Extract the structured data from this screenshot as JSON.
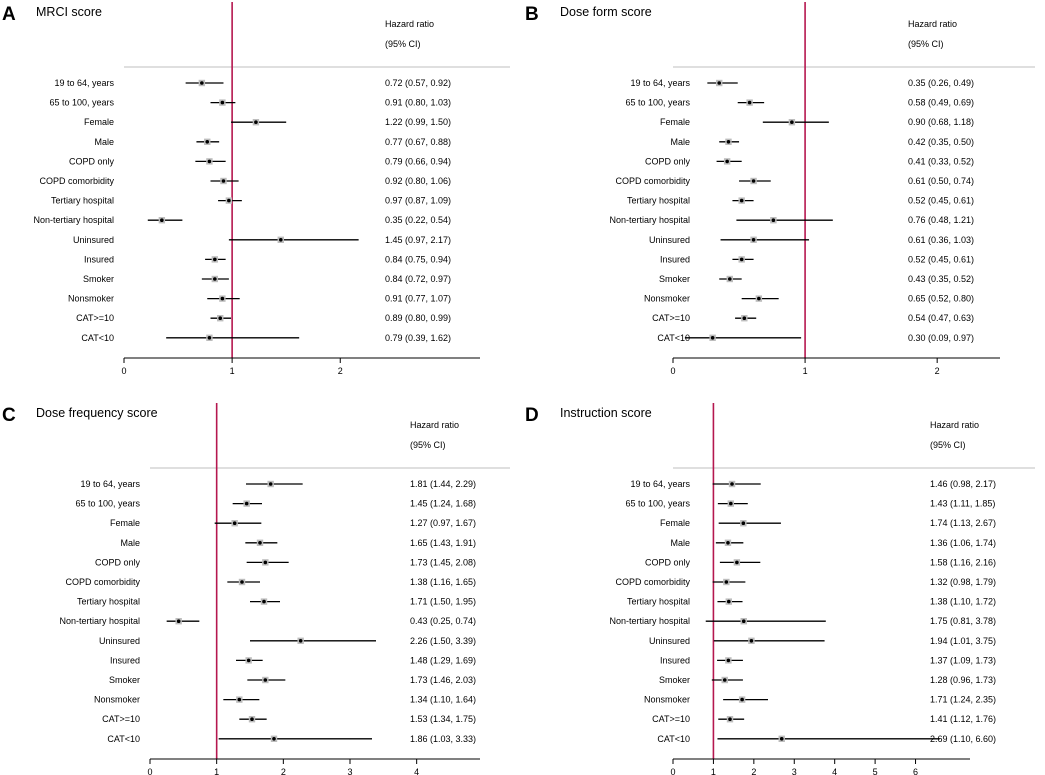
{
  "chart_data": [
    {
      "type": "forest",
      "panel_letter": "A",
      "title": "MRCI score",
      "header_line1": "Hazard ratio",
      "header_line2": "(95% CI)",
      "reference_line": 1,
      "xlim": [
        0,
        3.2
      ],
      "xticks": [
        0,
        1,
        2
      ],
      "rows": [
        {
          "label": "19 to 64, years",
          "hr": 0.72,
          "lo": 0.57,
          "hi": 0.92,
          "text": "0.72 (0.57, 0.92)"
        },
        {
          "label": "65 to 100, years",
          "hr": 0.91,
          "lo": 0.8,
          "hi": 1.03,
          "text": "0.91 (0.80, 1.03)"
        },
        {
          "label": "Female",
          "hr": 1.22,
          "lo": 0.99,
          "hi": 1.5,
          "text": "1.22 (0.99, 1.50)"
        },
        {
          "label": "Male",
          "hr": 0.77,
          "lo": 0.67,
          "hi": 0.88,
          "text": "0.77 (0.67, 0.88)"
        },
        {
          "label": "COPD only",
          "hr": 0.79,
          "lo": 0.66,
          "hi": 0.94,
          "text": "0.79 (0.66, 0.94)"
        },
        {
          "label": "COPD comorbidity",
          "hr": 0.92,
          "lo": 0.8,
          "hi": 1.06,
          "text": "0.92 (0.80, 1.06)"
        },
        {
          "label": "Tertiary hospital",
          "hr": 0.97,
          "lo": 0.87,
          "hi": 1.09,
          "text": "0.97 (0.87, 1.09)"
        },
        {
          "label": "Non-tertiary hospital",
          "hr": 0.35,
          "lo": 0.22,
          "hi": 0.54,
          "text": "0.35 (0.22, 0.54)"
        },
        {
          "label": "Uninsured",
          "hr": 1.45,
          "lo": 0.97,
          "hi": 2.17,
          "text": "1.45 (0.97, 2.17)"
        },
        {
          "label": "Insured",
          "hr": 0.84,
          "lo": 0.75,
          "hi": 0.94,
          "text": "0.84 (0.75, 0.94)"
        },
        {
          "label": "Smoker",
          "hr": 0.84,
          "lo": 0.72,
          "hi": 0.97,
          "text": "0.84 (0.72, 0.97)"
        },
        {
          "label": "Nonsmoker",
          "hr": 0.91,
          "lo": 0.77,
          "hi": 1.07,
          "text": "0.91 (0.77, 1.07)"
        },
        {
          "label": "CAT>=10",
          "hr": 0.89,
          "lo": 0.8,
          "hi": 0.99,
          "text": "0.89 (0.80, 0.99)"
        },
        {
          "label": "CAT<10",
          "hr": 0.79,
          "lo": 0.39,
          "hi": 1.62,
          "text": "0.79 (0.39, 1.62)"
        }
      ]
    },
    {
      "type": "forest",
      "panel_letter": "B",
      "title": "Dose form score",
      "header_line1": "Hazard ratio",
      "header_line2": "(95% CI)",
      "reference_line": 1,
      "xlim": [
        0,
        2.4
      ],
      "xticks": [
        0,
        1,
        2
      ],
      "rows": [
        {
          "label": "19 to 64, years",
          "hr": 0.35,
          "lo": 0.26,
          "hi": 0.49,
          "text": "0.35 (0.26, 0.49)"
        },
        {
          "label": "65 to 100, years",
          "hr": 0.58,
          "lo": 0.49,
          "hi": 0.69,
          "text": "0.58 (0.49, 0.69)"
        },
        {
          "label": "Female",
          "hr": 0.9,
          "lo": 0.68,
          "hi": 1.18,
          "text": "0.90 (0.68, 1.18)"
        },
        {
          "label": "Male",
          "hr": 0.42,
          "lo": 0.35,
          "hi": 0.5,
          "text": "0.42 (0.35, 0.50)"
        },
        {
          "label": "COPD only",
          "hr": 0.41,
          "lo": 0.33,
          "hi": 0.52,
          "text": "0.41 (0.33, 0.52)"
        },
        {
          "label": "COPD comorbidity",
          "hr": 0.61,
          "lo": 0.5,
          "hi": 0.74,
          "text": "0.61 (0.50, 0.74)"
        },
        {
          "label": "Tertiary hospital",
          "hr": 0.52,
          "lo": 0.45,
          "hi": 0.61,
          "text": "0.52 (0.45, 0.61)"
        },
        {
          "label": "Non-tertiary hospital",
          "hr": 0.76,
          "lo": 0.48,
          "hi": 1.21,
          "text": "0.76 (0.48, 1.21)"
        },
        {
          "label": "Uninsured",
          "hr": 0.61,
          "lo": 0.36,
          "hi": 1.03,
          "text": "0.61 (0.36, 1.03)"
        },
        {
          "label": "Insured",
          "hr": 0.52,
          "lo": 0.45,
          "hi": 0.61,
          "text": "0.52 (0.45, 0.61)"
        },
        {
          "label": "Smoker",
          "hr": 0.43,
          "lo": 0.35,
          "hi": 0.52,
          "text": "0.43 (0.35, 0.52)"
        },
        {
          "label": "Nonsmoker",
          "hr": 0.65,
          "lo": 0.52,
          "hi": 0.8,
          "text": "0.65 (0.52, 0.80)"
        },
        {
          "label": "CAT>=10",
          "hr": 0.54,
          "lo": 0.47,
          "hi": 0.63,
          "text": "0.54 (0.47, 0.63)"
        },
        {
          "label": "CAT<10",
          "hr": 0.3,
          "lo": 0.09,
          "hi": 0.97,
          "text": "0.30 (0.09, 0.97)"
        }
      ]
    },
    {
      "type": "forest",
      "panel_letter": "C",
      "title": "Dose frequency score",
      "header_line1": "Hazard ratio",
      "header_line2": "(95% CI)",
      "reference_line": 1,
      "xlim": [
        0,
        4.8
      ],
      "xticks": [
        0,
        1,
        2,
        3,
        4
      ],
      "rows": [
        {
          "label": "19 to 64, years",
          "hr": 1.81,
          "lo": 1.44,
          "hi": 2.29,
          "text": "1.81 (1.44, 2.29)"
        },
        {
          "label": "65 to 100, years",
          "hr": 1.45,
          "lo": 1.24,
          "hi": 1.68,
          "text": "1.45 (1.24, 1.68)"
        },
        {
          "label": "Female",
          "hr": 1.27,
          "lo": 0.97,
          "hi": 1.67,
          "text": "1.27 (0.97, 1.67)"
        },
        {
          "label": "Male",
          "hr": 1.65,
          "lo": 1.43,
          "hi": 1.91,
          "text": "1.65 (1.43, 1.91)"
        },
        {
          "label": "COPD only",
          "hr": 1.73,
          "lo": 1.45,
          "hi": 2.08,
          "text": "1.73 (1.45, 2.08)"
        },
        {
          "label": "COPD comorbidity",
          "hr": 1.38,
          "lo": 1.16,
          "hi": 1.65,
          "text": "1.38 (1.16, 1.65)"
        },
        {
          "label": "Tertiary hospital",
          "hr": 1.71,
          "lo": 1.5,
          "hi": 1.95,
          "text": "1.71 (1.50, 1.95)"
        },
        {
          "label": "Non-tertiary hospital",
          "hr": 0.43,
          "lo": 0.25,
          "hi": 0.74,
          "text": "0.43 (0.25, 0.74)"
        },
        {
          "label": "Uninsured",
          "hr": 2.26,
          "lo": 1.5,
          "hi": 3.39,
          "text": "2.26 (1.50, 3.39)"
        },
        {
          "label": "Insured",
          "hr": 1.48,
          "lo": 1.29,
          "hi": 1.69,
          "text": "1.48 (1.29, 1.69)"
        },
        {
          "label": "Smoker",
          "hr": 1.73,
          "lo": 1.46,
          "hi": 2.03,
          "text": "1.73 (1.46, 2.03)"
        },
        {
          "label": "Nonsmoker",
          "hr": 1.34,
          "lo": 1.1,
          "hi": 1.64,
          "text": "1.34 (1.10, 1.64)"
        },
        {
          "label": "CAT>=10",
          "hr": 1.53,
          "lo": 1.34,
          "hi": 1.75,
          "text": "1.53 (1.34, 1.75)"
        },
        {
          "label": "CAT<10",
          "hr": 1.86,
          "lo": 1.03,
          "hi": 3.33,
          "text": "1.86 (1.03, 3.33)"
        }
      ]
    },
    {
      "type": "forest",
      "panel_letter": "D",
      "title": "Instruction score",
      "header_line1": "Hazard ratio",
      "header_line2": "(95% CI)",
      "reference_line": 1,
      "xlim": [
        0,
        7.1
      ],
      "xticks": [
        0,
        1,
        2,
        3,
        4,
        5,
        6
      ],
      "rows": [
        {
          "label": "19 to 64, years",
          "hr": 1.46,
          "lo": 0.98,
          "hi": 2.17,
          "text": "1.46 (0.98, 2.17)"
        },
        {
          "label": "65 to 100, years",
          "hr": 1.43,
          "lo": 1.11,
          "hi": 1.85,
          "text": "1.43 (1.11, 1.85)"
        },
        {
          "label": "Female",
          "hr": 1.74,
          "lo": 1.13,
          "hi": 2.67,
          "text": "1.74 (1.13, 2.67)"
        },
        {
          "label": "Male",
          "hr": 1.36,
          "lo": 1.06,
          "hi": 1.74,
          "text": "1.36 (1.06, 1.74)"
        },
        {
          "label": "COPD only",
          "hr": 1.58,
          "lo": 1.16,
          "hi": 2.16,
          "text": "1.58 (1.16, 2.16)"
        },
        {
          "label": "COPD comorbidity",
          "hr": 1.32,
          "lo": 0.98,
          "hi": 1.79,
          "text": "1.32 (0.98, 1.79)"
        },
        {
          "label": "Tertiary hospital",
          "hr": 1.38,
          "lo": 1.1,
          "hi": 1.72,
          "text": "1.38 (1.10, 1.72)"
        },
        {
          "label": "Non-tertiary hospital",
          "hr": 1.75,
          "lo": 0.81,
          "hi": 3.78,
          "text": "1.75 (0.81, 3.78)"
        },
        {
          "label": "Uninsured",
          "hr": 1.94,
          "lo": 1.01,
          "hi": 3.75,
          "text": "1.94 (1.01, 3.75)"
        },
        {
          "label": "Insured",
          "hr": 1.37,
          "lo": 1.09,
          "hi": 1.73,
          "text": "1.37 (1.09, 1.73)"
        },
        {
          "label": "Smoker",
          "hr": 1.28,
          "lo": 0.96,
          "hi": 1.73,
          "text": "1.28 (0.96, 1.73)"
        },
        {
          "label": "Nonsmoker",
          "hr": 1.71,
          "lo": 1.24,
          "hi": 2.35,
          "text": "1.71 (1.24, 2.35)"
        },
        {
          "label": "CAT>=10",
          "hr": 1.41,
          "lo": 1.12,
          "hi": 1.76,
          "text": "1.41 (1.12, 1.76)"
        },
        {
          "label": "CAT<10",
          "hr": 2.69,
          "lo": 1.1,
          "hi": 6.6,
          "text": "2.69 (1.10, 6.60)"
        }
      ]
    }
  ],
  "colors": {
    "reference_line": "#b5174f",
    "ci_line": "#000000",
    "point": "#000000",
    "separator": "#bfbfbf",
    "text": "#000000"
  }
}
